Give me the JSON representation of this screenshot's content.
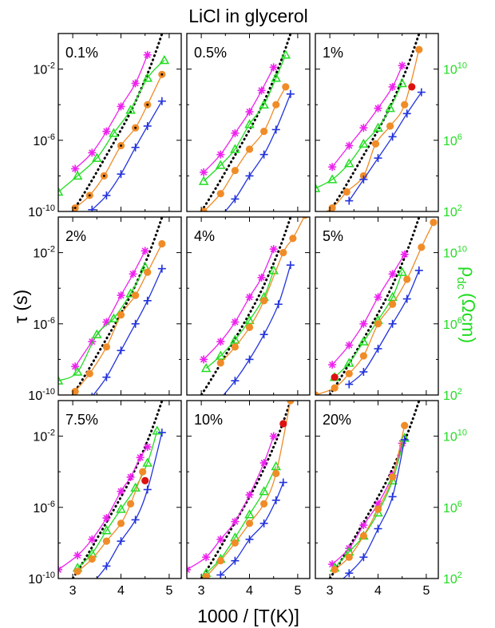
{
  "figure": {
    "title": "LiCl in glycerol",
    "xlabel": "1000 / [T(K)]",
    "ylabel_left": "τ (s)",
    "ylabel_right_main": "ρ",
    "ylabel_right_sub": "dc",
    "ylabel_right_unit": "(Ωcm)"
  },
  "colors": {
    "magenta": "#ee22ee",
    "green": "#22dd22",
    "orange": "#f08c28",
    "blue": "#2233dd",
    "black": "#000000",
    "red": "#dd1111"
  },
  "axes": {
    "x_range": [
      2.7,
      5.25
    ],
    "x_ticks": [
      "3",
      "4",
      "5"
    ],
    "left_log_range": [
      -10,
      0
    ],
    "left_ticks": [
      {
        "exp": -2,
        "label": "10",
        "sup": "-2"
      },
      {
        "exp": -6,
        "label": "10",
        "sup": "-6"
      },
      {
        "exp": -10,
        "label": "10",
        "sup": "-10"
      }
    ],
    "right_log_range": [
      2,
      12
    ],
    "right_ticks": [
      {
        "exp": 10,
        "label": "10",
        "sup": "10"
      },
      {
        "exp": 6,
        "label": "10",
        "sup": "6"
      },
      {
        "exp": 2,
        "label": "10",
        "sup": "2"
      }
    ]
  },
  "chart_data": [
    {
      "type": "scatter",
      "label": "0.1%",
      "series": [
        {
          "marker": "asterisk",
          "color": "magenta",
          "x": [
            3.05,
            3.4,
            3.7,
            4.0,
            4.3,
            4.55
          ],
          "y": [
            -7.6,
            -6.7,
            -5.5,
            -4.1,
            -2.8,
            -1.2
          ]
        },
        {
          "marker": "triangle",
          "color": "green",
          "x": [
            2.7,
            3.1,
            3.5,
            3.85,
            4.2,
            4.55,
            4.9
          ],
          "y": [
            -8.9,
            -8.0,
            -7.0,
            -5.6,
            -4.3,
            -2.5,
            -1.5
          ]
        },
        {
          "marker": "dotcircle",
          "color": "orange",
          "x": [
            3.05,
            3.35,
            3.65,
            4.0,
            4.3,
            4.55,
            4.85
          ],
          "y": [
            -9.8,
            -9.1,
            -8.0,
            -6.3,
            -5.3,
            -4.0,
            -2.3
          ]
        },
        {
          "marker": "plus",
          "color": "blue",
          "x": [
            3.4,
            3.7,
            4.0,
            4.3,
            4.55,
            4.85
          ],
          "y": [
            -9.9,
            -9.1,
            -7.9,
            -6.4,
            -5.2,
            -3.8
          ]
        }
      ]
    },
    {
      "type": "scatter",
      "label": "0.5%",
      "series": [
        {
          "marker": "asterisk",
          "color": "magenta",
          "x": [
            3.05,
            3.4,
            3.7,
            4.0,
            4.25,
            4.5
          ],
          "y": [
            -7.8,
            -6.8,
            -5.6,
            -4.4,
            -3.2,
            -1.9
          ]
        },
        {
          "marker": "triangle",
          "color": "green",
          "x": [
            3.05,
            3.4,
            3.7,
            4.0,
            4.3,
            4.55,
            4.75
          ],
          "y": [
            -8.3,
            -7.4,
            -6.5,
            -5.1,
            -4.0,
            -2.5,
            -1.2
          ]
        },
        {
          "marker": "circle",
          "color": "orange",
          "x": [
            3.05,
            3.4,
            3.7,
            4.0,
            4.3,
            4.55,
            4.75
          ],
          "y": [
            -10.0,
            -9.0,
            -7.7,
            -6.5,
            -5.5,
            -4.0,
            -3.0
          ]
        },
        {
          "marker": "plus",
          "color": "blue",
          "x": [
            3.4,
            3.7,
            4.0,
            4.3,
            4.55,
            4.85
          ],
          "y": [
            -10.3,
            -9.3,
            -8.0,
            -6.8,
            -5.4,
            -3.4
          ]
        }
      ]
    },
    {
      "type": "scatter",
      "label": "1%",
      "series": [
        {
          "marker": "asterisk",
          "color": "magenta",
          "x": [
            3.05,
            3.4,
            3.7,
            4.0,
            4.3,
            4.5
          ],
          "y": [
            -7.5,
            -6.3,
            -5.3,
            -4.2,
            -3.0,
            -1.8
          ]
        },
        {
          "marker": "triangle",
          "color": "green",
          "x": [
            2.7,
            3.05,
            3.4,
            3.7,
            4.0,
            4.25,
            4.5
          ],
          "y": [
            -8.7,
            -8.2,
            -7.3,
            -6.2,
            -5.3,
            -4.2,
            -2.8
          ]
        },
        {
          "marker": "circle",
          "color": "orange",
          "x": [
            2.7,
            3.05,
            3.35,
            3.7,
            3.95,
            4.25,
            4.55,
            4.85
          ],
          "y": [
            -10.3,
            -9.8,
            -8.9,
            -8.0,
            -6.2,
            -5.2,
            -4.0,
            -0.9
          ]
        },
        {
          "marker": "plus",
          "color": "blue",
          "x": [
            3.4,
            3.7,
            4.0,
            4.3,
            4.6,
            4.9
          ],
          "y": [
            -9.4,
            -8.2,
            -7.0,
            -5.8,
            -4.5,
            -3.3
          ]
        },
        {
          "marker": "circle",
          "color": "red",
          "x": [
            4.7
          ],
          "y": [
            -3.0
          ]
        }
      ]
    },
    {
      "type": "scatter",
      "label": "2%",
      "series": [
        {
          "marker": "asterisk",
          "color": "magenta",
          "x": [
            3.05,
            3.4,
            3.7,
            4.0,
            4.25,
            4.5
          ],
          "y": [
            -8.4,
            -7.0,
            -5.9,
            -4.4,
            -3.2,
            -1.9
          ]
        },
        {
          "marker": "triangle",
          "color": "green",
          "x": [
            2.7,
            3.1,
            3.5,
            3.85,
            4.2,
            4.5
          ],
          "y": [
            -9.2,
            -8.7,
            -6.6,
            -5.7,
            -4.3,
            -2.8
          ]
        },
        {
          "marker": "circle",
          "color": "orange",
          "x": [
            3.05,
            3.35,
            3.7,
            4.0,
            4.3,
            4.55,
            4.85
          ],
          "y": [
            -9.8,
            -8.8,
            -7.3,
            -5.5,
            -4.4,
            -3.1,
            -1.5
          ]
        },
        {
          "marker": "plus",
          "color": "blue",
          "x": [
            3.4,
            3.7,
            4.0,
            4.3,
            4.55,
            4.85
          ],
          "y": [
            -10.1,
            -9.0,
            -7.5,
            -6.0,
            -4.7,
            -2.9
          ]
        }
      ]
    },
    {
      "type": "scatter",
      "label": "4%",
      "series": [
        {
          "marker": "asterisk",
          "color": "magenta",
          "x": [
            3.05,
            3.4,
            3.7,
            4.0,
            4.25,
            4.5
          ],
          "y": [
            -8.0,
            -7.0,
            -5.9,
            -4.5,
            -3.4,
            -1.8
          ]
        },
        {
          "marker": "triangle",
          "color": "green",
          "x": [
            3.1,
            3.4,
            3.7,
            4.0,
            4.3,
            4.5
          ],
          "y": [
            -8.5,
            -7.8,
            -6.9,
            -5.8,
            -4.5,
            -3.0
          ]
        },
        {
          "marker": "circle",
          "color": "orange",
          "x": [
            3.4,
            3.7,
            4.0,
            4.3,
            4.7,
            4.9,
            5.15
          ],
          "y": [
            -8.2,
            -7.3,
            -6.2,
            -4.7,
            -2.0,
            -1.2,
            0.1
          ]
        },
        {
          "marker": "plus",
          "color": "blue",
          "x": [
            3.4,
            3.7,
            4.0,
            4.3,
            4.6,
            4.85
          ],
          "y": [
            -10.2,
            -9.2,
            -8.0,
            -6.6,
            -4.9,
            -2.7
          ]
        }
      ]
    },
    {
      "type": "scatter",
      "label": "5%",
      "series": [
        {
          "marker": "asterisk",
          "color": "magenta",
          "x": [
            3.05,
            3.4,
            3.7,
            4.0,
            4.3,
            4.55
          ],
          "y": [
            -8.3,
            -7.2,
            -6.0,
            -4.5,
            -3.2,
            -2.1
          ]
        },
        {
          "marker": "triangle",
          "color": "green",
          "x": [
            3.1,
            3.4,
            3.7,
            4.0,
            4.3,
            4.5
          ],
          "y": [
            -9.0,
            -8.2,
            -7.0,
            -5.8,
            -4.5,
            -3.1
          ]
        },
        {
          "marker": "circle",
          "color": "orange",
          "x": [
            2.7,
            3.1,
            3.4,
            3.7,
            4.0,
            4.3,
            4.6,
            4.9,
            5.15
          ],
          "y": [
            -10.0,
            -9.6,
            -8.8,
            -7.8,
            -6.0,
            -4.9,
            -3.5,
            -1.7,
            -0.3
          ]
        },
        {
          "marker": "plus",
          "color": "blue",
          "x": [
            3.4,
            3.7,
            4.0,
            4.3,
            4.6,
            4.85
          ],
          "y": [
            -9.4,
            -8.7,
            -7.4,
            -6.0,
            -4.6,
            -3.0
          ]
        },
        {
          "marker": "circle",
          "color": "red",
          "x": [
            3.1
          ],
          "y": [
            -9.0
          ]
        }
      ]
    },
    {
      "type": "scatter",
      "label": "7.5%",
      "series": [
        {
          "marker": "asterisk",
          "color": "magenta",
          "x": [
            2.7,
            3.1,
            3.4,
            3.7,
            4.0,
            4.2,
            4.4,
            4.55
          ],
          "y": [
            -9.5,
            -8.7,
            -7.8,
            -6.6,
            -5.1,
            -4.3,
            -3.2,
            -2.6
          ]
        },
        {
          "marker": "triangle",
          "color": "green",
          "x": [
            3.1,
            3.4,
            3.7,
            4.0,
            4.3,
            4.55,
            4.75
          ],
          "y": [
            -9.4,
            -8.6,
            -7.3,
            -6.1,
            -4.9,
            -3.5,
            -1.7
          ]
        },
        {
          "marker": "circle",
          "color": "orange",
          "x": [
            3.1,
            3.4,
            3.7,
            4.0,
            4.2,
            4.45
          ],
          "y": [
            -9.6,
            -8.9,
            -7.9,
            -6.9,
            -5.8,
            -4.0
          ]
        },
        {
          "marker": "plus",
          "color": "blue",
          "x": [
            3.4,
            3.7,
            4.0,
            4.3,
            4.55,
            4.85
          ],
          "y": [
            -10.3,
            -9.3,
            -7.9,
            -6.7,
            -5.0,
            -1.8
          ]
        },
        {
          "marker": "circle",
          "color": "red",
          "x": [
            4.5
          ],
          "y": [
            -4.5
          ]
        }
      ]
    },
    {
      "type": "scatter",
      "label": "10%",
      "series": [
        {
          "marker": "asterisk",
          "color": "magenta",
          "x": [
            2.7,
            3.1,
            3.4,
            3.7,
            4.0,
            4.3,
            4.5
          ],
          "y": [
            -9.5,
            -8.8,
            -7.8,
            -6.8,
            -5.3,
            -3.5,
            -2.0
          ]
        },
        {
          "marker": "triangle",
          "color": "green",
          "x": [
            3.1,
            3.4,
            3.7,
            4.0,
            4.3,
            4.55
          ],
          "y": [
            -9.7,
            -8.9,
            -7.7,
            -6.4,
            -5.1,
            -3.7
          ]
        },
        {
          "marker": "circle",
          "color": "orange",
          "x": [
            3.1,
            3.4,
            3.7,
            4.0,
            4.3,
            4.55,
            4.85
          ],
          "y": [
            -9.9,
            -9.0,
            -8.0,
            -6.9,
            -5.8,
            -4.1,
            0.0
          ]
        },
        {
          "marker": "plus",
          "color": "blue",
          "x": [
            3.4,
            3.7,
            4.0,
            4.3,
            4.55,
            4.7
          ],
          "y": [
            -9.8,
            -9.0,
            -7.8,
            -6.9,
            -5.6,
            -4.6
          ]
        },
        {
          "marker": "circle",
          "color": "red",
          "x": [
            4.7
          ],
          "y": [
            -1.3
          ]
        }
      ]
    },
    {
      "type": "scatter",
      "label": "20%",
      "series": [
        {
          "marker": "asterisk",
          "color": "magenta",
          "x": [
            3.05,
            3.4,
            3.7,
            4.0,
            4.3,
            4.5
          ],
          "y": [
            -9.2,
            -8.3,
            -7.0,
            -5.8,
            -4.2,
            -2.4
          ]
        },
        {
          "marker": "triangle",
          "color": "green",
          "x": [
            3.1,
            3.4,
            3.7,
            4.0,
            4.3,
            4.55
          ],
          "y": [
            -9.4,
            -8.5,
            -7.6,
            -6.3,
            -4.5,
            -2.1
          ]
        },
        {
          "marker": "circle",
          "color": "orange",
          "x": [
            3.1,
            3.4,
            3.7,
            4.0,
            4.3,
            4.55
          ],
          "y": [
            -9.5,
            -8.8,
            -7.6,
            -6.1,
            -4.3,
            -1.4
          ]
        },
        {
          "marker": "plus",
          "color": "blue",
          "x": [
            3.1,
            3.4,
            3.7,
            4.0,
            4.3,
            4.55
          ],
          "y": [
            -10.4,
            -9.7,
            -8.8,
            -7.2,
            -5.4,
            -2.2
          ]
        }
      ]
    }
  ],
  "vft_reference": {
    "description_hidden": true,
    "x": [
      2.7,
      3.0,
      3.3,
      3.6,
      3.9,
      4.2,
      4.5,
      4.7,
      4.9,
      5.05,
      5.15,
      5.25
    ],
    "y": [
      -11.2,
      -10.0,
      -8.7,
      -7.3,
      -5.9,
      -4.4,
      -2.6,
      -1.2,
      0.4,
      1.8,
      3.0,
      4.5
    ]
  }
}
